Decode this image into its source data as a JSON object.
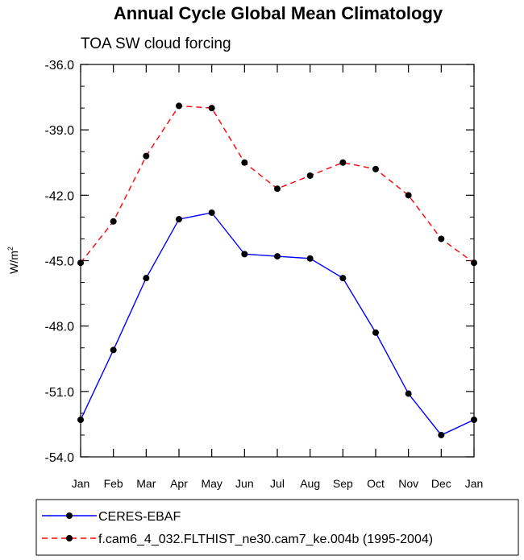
{
  "chart_data": {
    "type": "line",
    "title": "Annual Cycle Global Mean Climatology",
    "subtitle": "TOA SW cloud forcing",
    "ylabel": "W/m",
    "ylabel_superscript": "2",
    "xlabel": "",
    "categories": [
      "Jan",
      "Feb",
      "Mar",
      "Apr",
      "May",
      "Jun",
      "Jul",
      "Aug",
      "Sep",
      "Oct",
      "Nov",
      "Dec",
      "Jan"
    ],
    "ylim": [
      -54.0,
      -36.0
    ],
    "yticks": [
      -54.0,
      -51.0,
      -48.0,
      -45.0,
      -42.0,
      -39.0,
      -36.0
    ],
    "ytick_labels": [
      "-54.0",
      "-51.0",
      "-48.0",
      "-45.0",
      "-42.0",
      "-39.0",
      "-36.0"
    ],
    "grid": false,
    "legend_position": "bottom",
    "series": [
      {
        "name": "CERES-EBAF",
        "color": "#0000ff",
        "dash": "solid",
        "values": [
          -52.3,
          -49.1,
          -45.8,
          -43.1,
          -42.8,
          -44.7,
          -44.8,
          -44.9,
          -45.8,
          -48.3,
          -51.1,
          -53.0,
          -52.3
        ]
      },
      {
        "name": "f.cam6_4_032.FLTHIST_ne30.cam7_ke.004b (1995-2004)",
        "color": "#ff0000",
        "dash": "dashed",
        "values": [
          -45.1,
          -43.2,
          -40.2,
          -37.9,
          -38.0,
          -40.5,
          -41.7,
          -41.1,
          -40.5,
          -40.8,
          -42.0,
          -44.0,
          -45.1
        ]
      }
    ]
  }
}
